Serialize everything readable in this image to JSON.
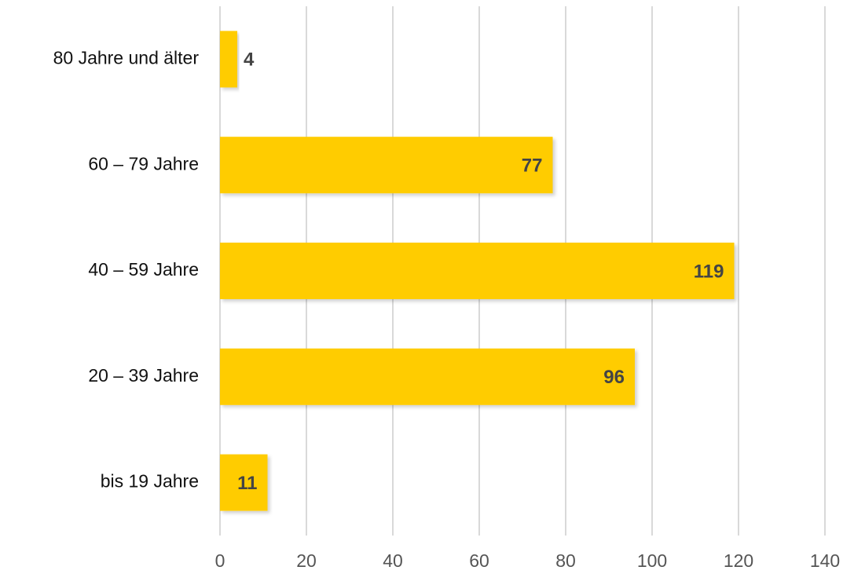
{
  "chart_data": {
    "type": "bar",
    "orientation": "horizontal",
    "categories": [
      "80 Jahre und älter",
      "60 – 79 Jahre",
      "40 – 59 Jahre",
      "20 – 39 Jahre",
      "bis 19 Jahre"
    ],
    "values": [
      4,
      77,
      119,
      96,
      11
    ],
    "color": "#ffcc00",
    "xlim": [
      0,
      140
    ],
    "xticks": [
      0,
      20,
      40,
      60,
      80,
      100,
      120,
      140
    ],
    "grid": true
  }
}
